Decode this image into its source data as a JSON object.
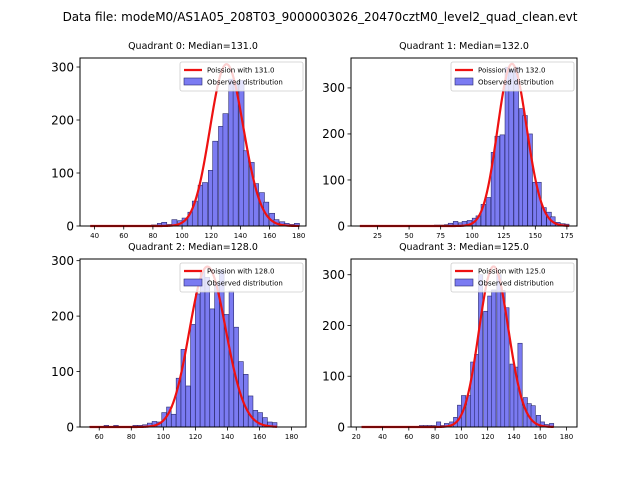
{
  "figure": {
    "suptitle": "Data file: modeM0/AS1A05_208T03_9000003026_20470cztM0_level2_quad_clean.evt"
  },
  "chart_data": [
    {
      "type": "bar",
      "title": "Quadrant 0: Median=131.0",
      "median": 131.0,
      "xlabel": "",
      "ylabel": "",
      "xlim": [
        30,
        185
      ],
      "ylim": [
        0,
        317
      ],
      "xticks": [
        40,
        60,
        80,
        100,
        120,
        140,
        160,
        180
      ],
      "yticks": [
        0,
        100,
        200,
        300
      ],
      "legend": [
        "Poission with 131.0",
        "Observed distribution"
      ],
      "legend_loc": "upper right",
      "bin_width": 3.5,
      "bins": [
        [
          37,
          0
        ],
        [
          41,
          0
        ],
        [
          44,
          0
        ],
        [
          48,
          0
        ],
        [
          51,
          0
        ],
        [
          55,
          0
        ],
        [
          58,
          0
        ],
        [
          62,
          0
        ],
        [
          65,
          1
        ],
        [
          69,
          1
        ],
        [
          72,
          1
        ],
        [
          76,
          1
        ],
        [
          79,
          2
        ],
        [
          83,
          5
        ],
        [
          86,
          7
        ],
        [
          90,
          3
        ],
        [
          93,
          12
        ],
        [
          97,
          10
        ],
        [
          100,
          15
        ],
        [
          104,
          26
        ],
        [
          107,
          47
        ],
        [
          111,
          77
        ],
        [
          114,
          82
        ],
        [
          118,
          105
        ],
        [
          121,
          160
        ],
        [
          125,
          188
        ],
        [
          128,
          212
        ],
        [
          132,
          277
        ],
        [
          135,
          270
        ],
        [
          139,
          275
        ],
        [
          142,
          142
        ],
        [
          146,
          120
        ],
        [
          149,
          80
        ],
        [
          153,
          63
        ],
        [
          156,
          45
        ],
        [
          160,
          24
        ],
        [
          163,
          12
        ],
        [
          167,
          8
        ],
        [
          170,
          5
        ],
        [
          174,
          3
        ],
        [
          177,
          5
        ]
      ],
      "peaks": [
        [
          125,
          300
        ],
        [
          128,
          198
        ],
        [
          131,
          300
        ],
        [
          135,
          200
        ]
      ],
      "poisson_mean": 131.0,
      "poisson_peak": 305
    },
    {
      "type": "bar",
      "title": "Quadrant 1: Median=132.0",
      "median": 132.0,
      "xlabel": "",
      "ylabel": "",
      "xlim": [
        4,
        183
      ],
      "ylim": [
        0,
        365
      ],
      "xticks": [
        25,
        50,
        75,
        100,
        125,
        150,
        175
      ],
      "yticks": [
        0,
        100,
        200,
        300
      ],
      "legend": [
        "Poission with 132.0",
        "Observed distribution"
      ],
      "legend_loc": "upper right",
      "bin_width": 3.7,
      "bins": [
        [
          11,
          0
        ],
        [
          15,
          0
        ],
        [
          19,
          0
        ],
        [
          22,
          0
        ],
        [
          26,
          0
        ],
        [
          30,
          0
        ],
        [
          33,
          0
        ],
        [
          37,
          0
        ],
        [
          41,
          0
        ],
        [
          45,
          0
        ],
        [
          48,
          0
        ],
        [
          52,
          0
        ],
        [
          56,
          0
        ],
        [
          59,
          0
        ],
        [
          63,
          0
        ],
        [
          67,
          0
        ],
        [
          70,
          2
        ],
        [
          74,
          2
        ],
        [
          78,
          3
        ],
        [
          81,
          6
        ],
        [
          85,
          10
        ],
        [
          89,
          7
        ],
        [
          92,
          10
        ],
        [
          96,
          12
        ],
        [
          100,
          17
        ],
        [
          103,
          22
        ],
        [
          107,
          47
        ],
        [
          111,
          62
        ],
        [
          115,
          160
        ],
        [
          118,
          195
        ],
        [
          122,
          198
        ],
        [
          126,
          345
        ],
        [
          129,
          340
        ],
        [
          133,
          345
        ],
        [
          137,
          255
        ],
        [
          140,
          240
        ],
        [
          144,
          200
        ],
        [
          148,
          95
        ],
        [
          151,
          95
        ],
        [
          155,
          40
        ],
        [
          159,
          30
        ],
        [
          162,
          20
        ],
        [
          166,
          8
        ],
        [
          170,
          5
        ],
        [
          173,
          4
        ]
      ],
      "poisson_mean": 132.0,
      "poisson_peak": 352
    },
    {
      "type": "bar",
      "title": "Quadrant 2: Median=128.0",
      "median": 128.0,
      "xlabel": "",
      "ylabel": "",
      "xlim": [
        48,
        189
      ],
      "ylim": [
        0,
        303
      ],
      "xticks": [
        60,
        80,
        100,
        120,
        140,
        160,
        180
      ],
      "yticks": [
        0,
        100,
        200,
        300
      ],
      "legend": [
        "Poission with 128.0",
        "Observed distribution"
      ],
      "legend_loc": "upper right",
      "bin_width": 2.9,
      "bins": [
        [
          54,
          1
        ],
        [
          57,
          0
        ],
        [
          60,
          1
        ],
        [
          63,
          3
        ],
        [
          66,
          1
        ],
        [
          69,
          3
        ],
        [
          72,
          0
        ],
        [
          75,
          0
        ],
        [
          78,
          1
        ],
        [
          81,
          3
        ],
        [
          84,
          3
        ],
        [
          87,
          4
        ],
        [
          90,
          7
        ],
        [
          93,
          10
        ],
        [
          96,
          9
        ],
        [
          99,
          26
        ],
        [
          102,
          36
        ],
        [
          105,
          23
        ],
        [
          108,
          88
        ],
        [
          111,
          140
        ],
        [
          114,
          74
        ],
        [
          117,
          185
        ],
        [
          120,
          240
        ],
        [
          123,
          282
        ],
        [
          126,
          270
        ],
        [
          129,
          213
        ],
        [
          132,
          260
        ],
        [
          135,
          283
        ],
        [
          138,
          203
        ],
        [
          141,
          245
        ],
        [
          144,
          180
        ],
        [
          147,
          118
        ],
        [
          150,
          95
        ],
        [
          153,
          56
        ],
        [
          156,
          30
        ],
        [
          159,
          26
        ],
        [
          162,
          17
        ],
        [
          165,
          9
        ],
        [
          168,
          8
        ]
      ],
      "peaks": [
        [
          123,
          282
        ],
        [
          126,
          170
        ],
        [
          129,
          213
        ],
        [
          131,
          283
        ]
      ],
      "poisson_mean": 128.0,
      "poisson_peak": 289
    },
    {
      "type": "bar",
      "title": "Quadrant 3: Median=125.0",
      "median": 125.0,
      "xlabel": "",
      "ylabel": "",
      "xlim": [
        16,
        188
      ],
      "ylim": [
        0,
        331
      ],
      "xticks": [
        20,
        40,
        60,
        80,
        100,
        120,
        140,
        160,
        180
      ],
      "yticks": [
        0,
        100,
        200,
        300
      ],
      "legend": [
        "Poission with 125.0",
        "Observed distribution"
      ],
      "legend_loc": "upper right",
      "bin_width": 3.3,
      "bins": [
        [
          24,
          0
        ],
        [
          28,
          0
        ],
        [
          31,
          0
        ],
        [
          34,
          0
        ],
        [
          38,
          0
        ],
        [
          41,
          0
        ],
        [
          44,
          1
        ],
        [
          48,
          1
        ],
        [
          51,
          0
        ],
        [
          54,
          0
        ],
        [
          58,
          0
        ],
        [
          61,
          1
        ],
        [
          64,
          1
        ],
        [
          68,
          3
        ],
        [
          71,
          3
        ],
        [
          74,
          3
        ],
        [
          77,
          3
        ],
        [
          81,
          10
        ],
        [
          84,
          3
        ],
        [
          87,
          7
        ],
        [
          91,
          10
        ],
        [
          94,
          19
        ],
        [
          97,
          43
        ],
        [
          100,
          62
        ],
        [
          104,
          62
        ],
        [
          107,
          128
        ],
        [
          110,
          143
        ],
        [
          113,
          300
        ],
        [
          117,
          228
        ],
        [
          120,
          258
        ],
        [
          123,
          270
        ],
        [
          127,
          300
        ],
        [
          130,
          269
        ],
        [
          133,
          235
        ],
        [
          137,
          124
        ],
        [
          140,
          118
        ],
        [
          143,
          165
        ],
        [
          147,
          58
        ],
        [
          150,
          46
        ],
        [
          153,
          42
        ],
        [
          157,
          23
        ],
        [
          160,
          10
        ],
        [
          163,
          5
        ],
        [
          167,
          7
        ]
      ],
      "poisson_mean": 125.0,
      "poisson_peak": 316
    }
  ]
}
